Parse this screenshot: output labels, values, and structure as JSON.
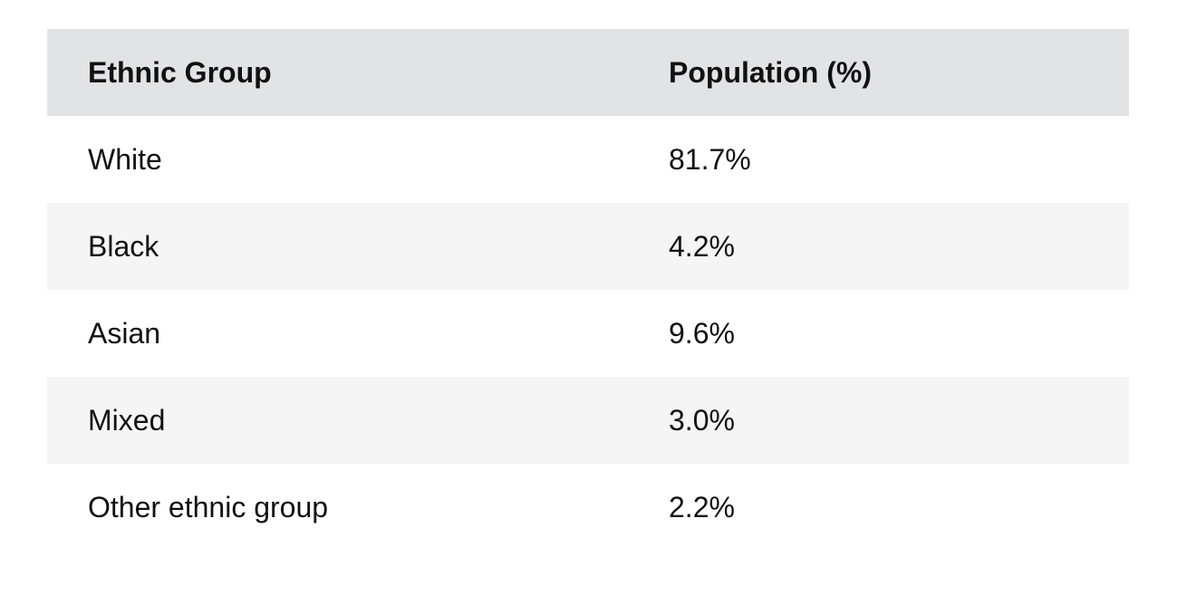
{
  "chart_data": {
    "type": "table",
    "title": "",
    "columns": [
      "Ethnic Group",
      "Population (%)"
    ],
    "rows": [
      [
        "White",
        "81.7%"
      ],
      [
        "Black",
        "4.2%"
      ],
      [
        "Asian",
        "9.6%"
      ],
      [
        "Mixed",
        "3.0%"
      ],
      [
        "Other ethnic group",
        "2.2%"
      ]
    ],
    "values_numeric": [
      81.7,
      4.2,
      9.6,
      3.0,
      2.2
    ],
    "layout": {
      "zebra_striping": true,
      "gridlines": false,
      "header_background": "#e2e3e4",
      "zebra_background": "#f5f5f5"
    }
  },
  "table": {
    "columns": [
      "Ethnic Group",
      "Population (%)"
    ],
    "rows": [
      {
        "group": "White",
        "value": "81.7%"
      },
      {
        "group": "Black",
        "value": "4.2%"
      },
      {
        "group": "Asian",
        "value": "9.6%"
      },
      {
        "group": "Mixed",
        "value": "3.0%"
      },
      {
        "group": "Other ethnic group",
        "value": "2.2%"
      }
    ]
  },
  "colors": {
    "page_background": "#ffffff",
    "header_background": "#e2e3e4",
    "zebra_background": "#f5f5f5",
    "text": "#111111"
  }
}
